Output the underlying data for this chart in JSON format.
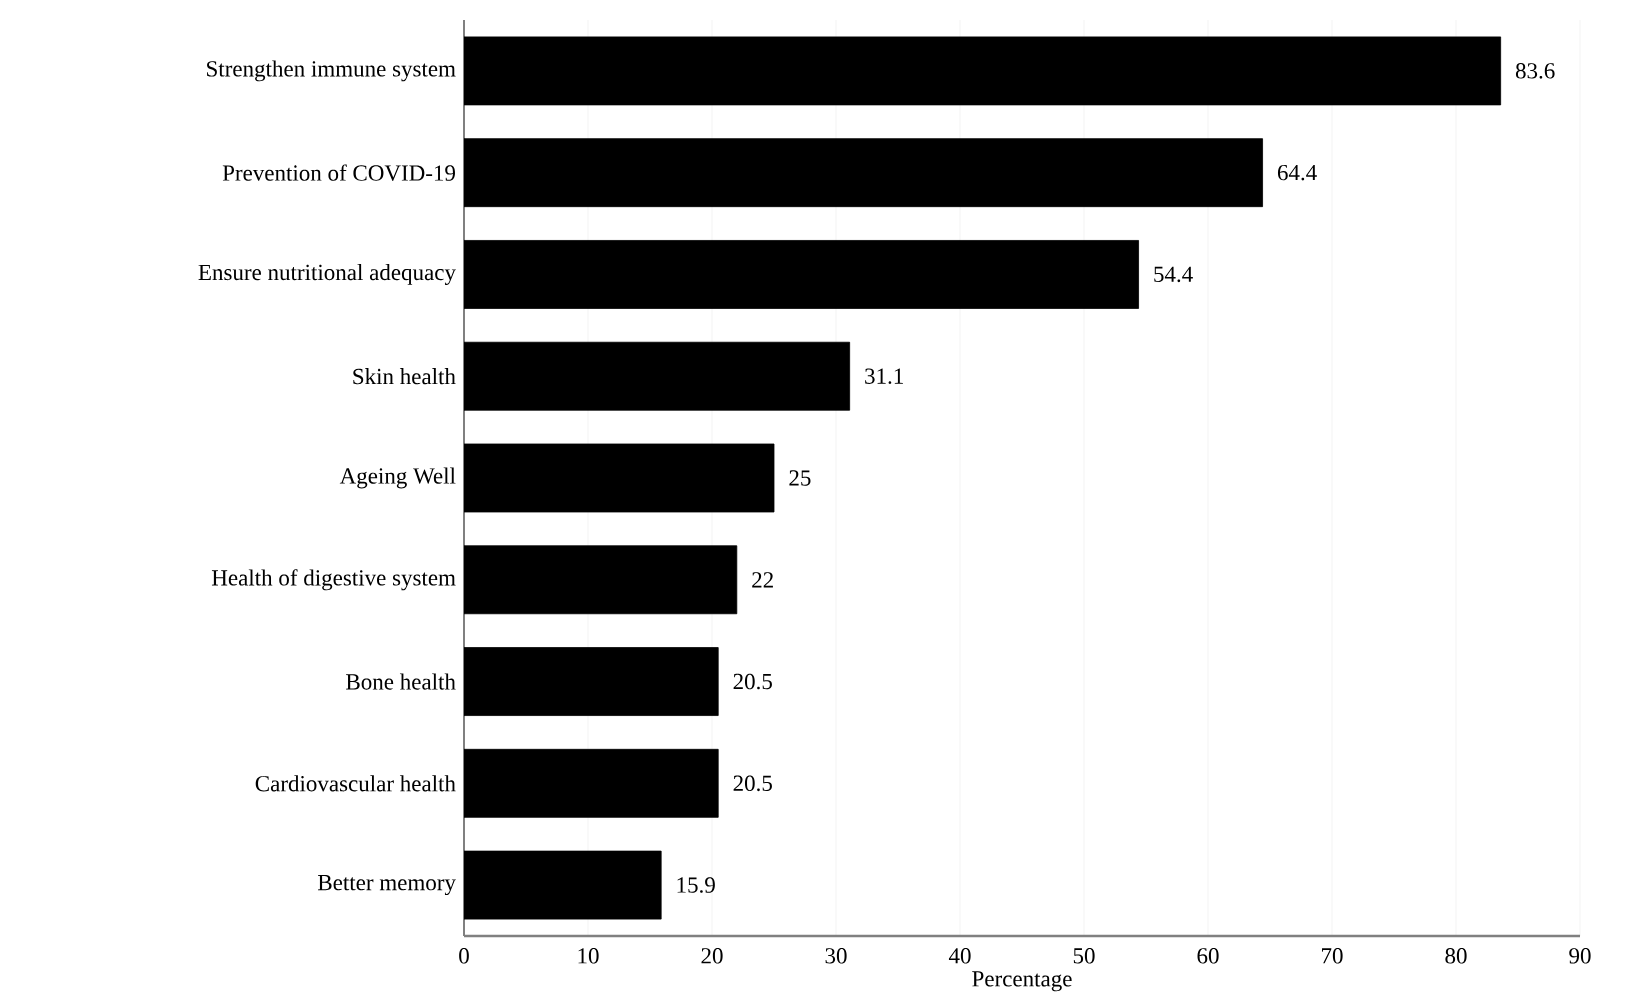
{
  "chart_data": {
    "type": "bar",
    "orientation": "horizontal",
    "xlabel": "Percentage",
    "categories": [
      "Strengthen immune system",
      "Prevention of COVID-19",
      "Ensure nutritional adequacy",
      "Skin health",
      "Ageing Well",
      "Health of digestive system",
      "Bone health",
      "Cardiovascular health",
      "Better memory"
    ],
    "values": [
      83.6,
      64.4,
      54.4,
      31.1,
      25,
      22,
      20.5,
      20.5,
      15.9
    ],
    "color": "#000000",
    "data_labels": true,
    "grid": "x",
    "xlim": [
      0,
      90
    ],
    "xticks": [
      0,
      10,
      20,
      30,
      40,
      50,
      60,
      70,
      80,
      90
    ]
  }
}
